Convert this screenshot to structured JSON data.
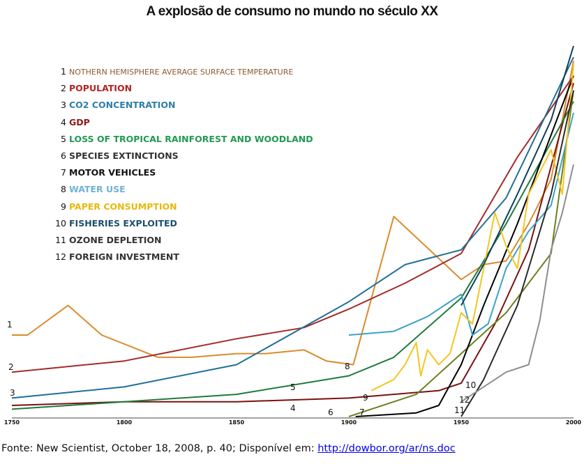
{
  "chart_data": {
    "type": "line",
    "title": "A explosão de consumo no mundo no século XX",
    "xlabel": "",
    "ylabel": "",
    "xlim": [
      1750,
      2000
    ],
    "ylim": [
      0,
      100
    ],
    "x_ticks": [
      "1750",
      "1800",
      "1850",
      "1900",
      "1950",
      "2000"
    ],
    "legend_position": "top-left",
    "series": [
      {
        "number": "1",
        "name": "NOTHERN HEMISPHERE AVERAGE SURFACE TEMPERATURE",
        "color": "#d98b2b",
        "label_color": "#8b5a2b",
        "points": [
          [
            1750,
            22
          ],
          [
            1757,
            22
          ],
          [
            1775,
            30
          ],
          [
            1790,
            22
          ],
          [
            1815,
            16
          ],
          [
            1830,
            16
          ],
          [
            1850,
            17
          ],
          [
            1863,
            17
          ],
          [
            1880,
            18
          ],
          [
            1890,
            15
          ],
          [
            1902,
            14
          ],
          [
            1920,
            54
          ],
          [
            1950,
            37
          ],
          [
            1960,
            41
          ],
          [
            1970,
            42
          ],
          [
            1980,
            52
          ],
          [
            1990,
            64
          ],
          [
            2000,
            96
          ]
        ]
      },
      {
        "number": "2",
        "name": "POPULATION",
        "color": "#a52a2a",
        "label_color": "#b22222",
        "points": [
          [
            1750,
            12
          ],
          [
            1800,
            15
          ],
          [
            1850,
            21
          ],
          [
            1880,
            24
          ],
          [
            1900,
            29
          ],
          [
            1925,
            36
          ],
          [
            1950,
            44
          ],
          [
            1975,
            70
          ],
          [
            2000,
            92
          ]
        ]
      },
      {
        "number": "3",
        "name": "CO2 CONCENTRATION",
        "color": "#1f6f98",
        "label_color": "#2e7fa8",
        "points": [
          [
            1750,
            5
          ],
          [
            1800,
            8
          ],
          [
            1850,
            14
          ],
          [
            1900,
            31
          ],
          [
            1925,
            41
          ],
          [
            1950,
            45
          ],
          [
            1970,
            59
          ],
          [
            2000,
            97
          ]
        ]
      },
      {
        "number": "4",
        "name": "GDP",
        "color": "#7b1010",
        "label_color": "#8b1a1a",
        "points": [
          [
            1750,
            3
          ],
          [
            1800,
            4
          ],
          [
            1850,
            4
          ],
          [
            1900,
            5
          ],
          [
            1940,
            7
          ],
          [
            1950,
            9
          ],
          [
            1965,
            25
          ],
          [
            1980,
            45
          ],
          [
            2000,
            90
          ]
        ]
      },
      {
        "number": "5",
        "name": "LOSS OF TROPICAL RAINFOREST AND WOODLAND",
        "color": "#1e7a3c",
        "label_color": "#229954",
        "points": [
          [
            1750,
            2
          ],
          [
            1800,
            4
          ],
          [
            1850,
            6
          ],
          [
            1900,
            11
          ],
          [
            1920,
            16
          ],
          [
            1950,
            32
          ],
          [
            1970,
            52
          ],
          [
            2000,
            85
          ]
        ]
      },
      {
        "number": "6",
        "name": "SPECIES EXTINCTIONS",
        "color": "#6b7f1e",
        "label_color": "#333333",
        "points": [
          [
            1900,
            0
          ],
          [
            1930,
            6
          ],
          [
            1950,
            17
          ],
          [
            1970,
            28
          ],
          [
            1990,
            44
          ],
          [
            2000,
            88
          ]
        ]
      },
      {
        "number": "7",
        "name": "MOTOR VEHICLES",
        "color": "#000000",
        "label_color": "#111111",
        "points": [
          [
            1903,
            0
          ],
          [
            1930,
            1
          ],
          [
            1940,
            3
          ],
          [
            1950,
            14
          ],
          [
            1960,
            30
          ],
          [
            1975,
            52
          ],
          [
            2000,
            92
          ]
        ]
      },
      {
        "number": "8",
        "name": "WATER USE",
        "color": "#3aa1c8",
        "label_color": "#6fb3d6",
        "points": [
          [
            1900,
            22
          ],
          [
            1920,
            23
          ],
          [
            1935,
            27
          ],
          [
            1950,
            33
          ],
          [
            1955,
            22
          ],
          [
            1962,
            25
          ],
          [
            1970,
            40
          ],
          [
            1980,
            50
          ],
          [
            1990,
            57
          ],
          [
            2000,
            82
          ]
        ]
      },
      {
        "number": "9",
        "name": "PAPER CONSUMPTION",
        "color": "#f2c61f",
        "label_color": "#e8b80f",
        "points": [
          [
            1910,
            7
          ],
          [
            1920,
            10
          ],
          [
            1925,
            14
          ],
          [
            1930,
            20
          ],
          [
            1932,
            11
          ],
          [
            1935,
            18
          ],
          [
            1940,
            14
          ],
          [
            1945,
            17
          ],
          [
            1950,
            28
          ],
          [
            1955,
            25
          ],
          [
            1960,
            40
          ],
          [
            1965,
            55
          ],
          [
            1970,
            46
          ],
          [
            1975,
            40
          ],
          [
            1980,
            60
          ],
          [
            1985,
            66
          ],
          [
            1990,
            72
          ],
          [
            1995,
            60
          ],
          [
            2000,
            95
          ]
        ]
      },
      {
        "number": "10",
        "name": "FISHERIES EXPLOITED",
        "color": "#0d3f5a",
        "label_color": "#1f4f6a",
        "points": [
          [
            1950,
            30
          ],
          [
            1960,
            41
          ],
          [
            1975,
            60
          ],
          [
            1990,
            80
          ],
          [
            2000,
            100
          ]
        ]
      },
      {
        "number": "11",
        "name": "OZONE DEPLETION",
        "color": "#2a2a2a",
        "label_color": "#333333",
        "points": [
          [
            1950,
            0
          ],
          [
            1960,
            10
          ],
          [
            1975,
            30
          ],
          [
            1990,
            60
          ],
          [
            2000,
            88
          ]
        ]
      },
      {
        "number": "12",
        "name": "FOREIGN INVESTMENT",
        "color": "#8d8d8d",
        "label_color": "#333333",
        "points": [
          [
            1950,
            4
          ],
          [
            1960,
            8
          ],
          [
            1970,
            12
          ],
          [
            1980,
            14
          ],
          [
            1985,
            26
          ],
          [
            1990,
            45
          ],
          [
            1995,
            55
          ],
          [
            2000,
            68
          ]
        ]
      }
    ]
  },
  "footer": {
    "text": "Fonte: New Scientist, October 18, 2008, p. 40; Disponível em: ",
    "link": "http://dowbor.org/ar/ns.doc"
  }
}
